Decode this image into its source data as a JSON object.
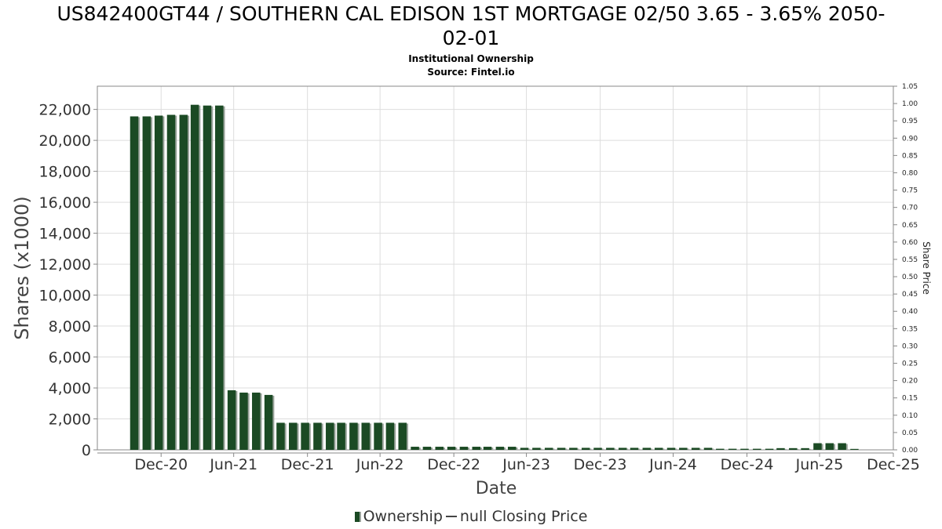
{
  "header": {
    "title_line1": "US842400GT44 / SOUTHERN CAL EDISON 1ST MORTGAGE 02/50 3.65 - 3.65% 2050-",
    "title_line2": "02-01",
    "subtitle1": "Institutional Ownership",
    "subtitle2": "Source: Fintel.io"
  },
  "legend": {
    "ownership_label": "Ownership",
    "price_label": "null Closing Price"
  },
  "colors": {
    "bar": "#1b4a24",
    "bar_shadow": "#9aa39b",
    "grid": "#dddddd",
    "axis": "#888888"
  },
  "chart_data": {
    "type": "bar",
    "xlabel": "Date",
    "ylabel": "Shares (x1000)",
    "y2label": "Share Price",
    "ylim": [
      0,
      23500
    ],
    "yticks": [
      0,
      2000,
      4000,
      6000,
      8000,
      10000,
      12000,
      14000,
      16000,
      18000,
      20000,
      22000
    ],
    "ytick_labels": [
      "0",
      "2,000",
      "4,000",
      "6,000",
      "8,000",
      "10,000",
      "12,000",
      "14,000",
      "16,000",
      "18,000",
      "20,000",
      "22,000"
    ],
    "y2lim": [
      0,
      1.05
    ],
    "y2ticks": [
      0.0,
      0.05,
      0.1,
      0.15,
      0.2,
      0.25,
      0.3,
      0.35,
      0.4,
      0.45,
      0.5,
      0.55,
      0.6,
      0.65,
      0.7,
      0.75,
      0.8,
      0.85,
      0.9,
      0.95,
      1.0,
      1.05
    ],
    "y2tick_labels": [
      "0.00",
      "0.05",
      "0.10",
      "0.15",
      "0.20",
      "0.25",
      "0.30",
      "0.35",
      "0.40",
      "0.45",
      "0.50",
      "0.55",
      "0.60",
      "0.65",
      "0.70",
      "0.75",
      "0.80",
      "0.85",
      "0.90",
      "0.95",
      "1.00",
      "1.05"
    ],
    "xlim": [
      "2020-07-25",
      "2025-12-31"
    ],
    "xticks": [
      "2020-12-31",
      "2021-06-30",
      "2021-12-31",
      "2022-06-30",
      "2022-12-31",
      "2023-06-30",
      "2023-12-31",
      "2024-06-30",
      "2024-12-31",
      "2025-06-30",
      "2025-12-31"
    ],
    "xtick_labels": [
      "Dec-20",
      "Jun-21",
      "Dec-21",
      "Jun-22",
      "Dec-22",
      "Jun-23",
      "Dec-23",
      "Jun-24",
      "Dec-24",
      "Jun-25",
      "Dec-25"
    ],
    "grid": true,
    "legend_position": "bottom",
    "series": [
      {
        "name": "Ownership",
        "x": [
          "2020-10-25",
          "2020-11-25",
          "2020-12-25",
          "2021-01-25",
          "2021-02-25",
          "2021-03-25",
          "2021-04-25",
          "2021-05-25",
          "2021-06-25",
          "2021-07-25",
          "2021-08-25",
          "2021-09-25",
          "2021-10-25",
          "2021-11-25",
          "2021-12-25",
          "2022-01-25",
          "2022-02-25",
          "2022-03-25",
          "2022-04-25",
          "2022-05-25",
          "2022-06-25",
          "2022-07-25",
          "2022-08-25",
          "2022-09-25",
          "2022-10-25",
          "2022-11-25",
          "2022-12-25",
          "2023-01-25",
          "2023-02-25",
          "2023-03-25",
          "2023-04-25",
          "2023-05-25",
          "2023-06-25",
          "2023-07-25",
          "2023-08-25",
          "2023-09-25",
          "2023-10-25",
          "2023-11-25",
          "2023-12-25",
          "2024-01-25",
          "2024-02-25",
          "2024-03-25",
          "2024-04-25",
          "2024-05-25",
          "2024-06-25",
          "2024-07-25",
          "2024-08-25",
          "2024-09-25",
          "2024-10-25",
          "2024-11-25",
          "2024-12-25",
          "2025-01-25",
          "2025-02-25",
          "2025-03-25",
          "2025-04-25",
          "2025-05-25",
          "2025-06-25",
          "2025-07-25",
          "2025-08-25"
        ],
        "values": [
          21550,
          21550,
          21600,
          21650,
          21650,
          22300,
          22250,
          22250,
          3850,
          3700,
          3700,
          3550,
          1750,
          1750,
          1750,
          1750,
          1750,
          1750,
          1750,
          1750,
          1750,
          1750,
          1750,
          200,
          200,
          200,
          200,
          200,
          200,
          200,
          200,
          200,
          130,
          130,
          130,
          130,
          130,
          130,
          130,
          130,
          130,
          130,
          130,
          130,
          130,
          130,
          130,
          130,
          70,
          70,
          70,
          70,
          70,
          110,
          110,
          110,
          430,
          430,
          430
        ]
      },
      {
        "name": "null Closing Price",
        "values": []
      }
    ],
    "extra_bar": {
      "x": "2025-09-25",
      "value": 60
    }
  }
}
